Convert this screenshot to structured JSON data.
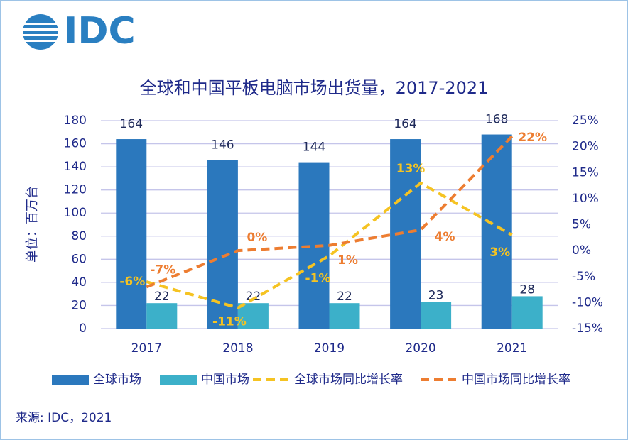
{
  "logo": "IDC",
  "source": "来源: IDC，2021",
  "chart_data": {
    "type": "bar-line",
    "title": "全球和中国平板电脑市场出货量，2017-2021",
    "y_label": "单位：百万台",
    "categories": [
      "2017",
      "2018",
      "2019",
      "2020",
      "2021"
    ],
    "ylim": [
      0,
      180
    ],
    "yticks": [
      0,
      20,
      40,
      60,
      80,
      100,
      120,
      140,
      160,
      180
    ],
    "y2lim": [
      -15,
      25
    ],
    "y2ticks": [
      {
        "value": -15,
        "label": "-15%"
      },
      {
        "value": -10,
        "label": "-10%"
      },
      {
        "value": -5,
        "label": "-5%"
      },
      {
        "value": 0,
        "label": "0%"
      },
      {
        "value": 5,
        "label": "5%"
      },
      {
        "value": 10,
        "label": "10%"
      },
      {
        "value": 15,
        "label": "15%"
      },
      {
        "value": 20,
        "label": "20%"
      },
      {
        "value": 25,
        "label": "25%"
      }
    ],
    "grid": true,
    "legend": "bottom",
    "series": [
      {
        "name": "全球市场",
        "type": "bar",
        "color": "#2b78bd",
        "values": [
          164,
          146,
          144,
          164,
          168
        ]
      },
      {
        "name": "中国市场",
        "type": "bar",
        "color": "#3cb0c9",
        "values": [
          22,
          22,
          22,
          23,
          28
        ]
      },
      {
        "name": "全球市场同比增长率",
        "type": "line",
        "axis": "y2",
        "color": "#f5c322",
        "dashed": true,
        "values": [
          -6,
          -11,
          -1,
          13,
          3
        ],
        "value_labels": [
          "-6%",
          "-11%",
          "-1%",
          "13%",
          "3%"
        ]
      },
      {
        "name": "中国市场同比增长率",
        "type": "line",
        "axis": "y2",
        "color": "#ed7d31",
        "dashed": true,
        "values": [
          -7,
          0,
          1,
          4,
          22
        ],
        "value_labels": [
          "-7%",
          "0%",
          "1%",
          "4%",
          "22%"
        ]
      }
    ]
  }
}
